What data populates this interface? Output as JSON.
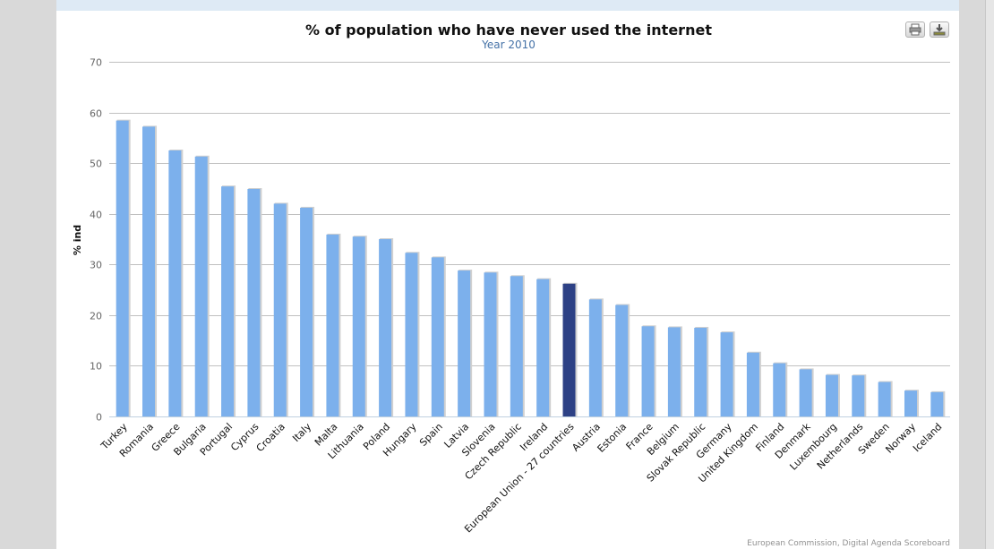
{
  "chart_data": {
    "type": "bar",
    "title": "% of population who have never used the internet",
    "subtitle": "Year 2010",
    "ylabel": "% ind",
    "xlabel": "",
    "ylim": [
      0,
      70
    ],
    "yticks": [
      0,
      10,
      20,
      30,
      40,
      50,
      60,
      70
    ],
    "grid": true,
    "categories": [
      "Turkey",
      "Romania",
      "Greece",
      "Bulgaria",
      "Portugal",
      "Cyprus",
      "Croatia",
      "Italy",
      "Malta",
      "Lithuania",
      "Poland",
      "Hungary",
      "Spain",
      "Latvia",
      "Slovenia",
      "Czech Republic",
      "Ireland",
      "European Union - 27 countries",
      "Austria",
      "Estonia",
      "France",
      "Belgium",
      "Slovak Republic",
      "Germany",
      "United Kingdom",
      "Finland",
      "Denmark",
      "Luxembourg",
      "Netherlands",
      "Sweden",
      "Norway",
      "Iceland"
    ],
    "values": [
      58.4,
      57.2,
      52.5,
      51.3,
      45.4,
      44.9,
      42.0,
      41.2,
      35.9,
      35.5,
      35.0,
      32.3,
      31.4,
      28.8,
      28.4,
      27.7,
      27.1,
      26.2,
      23.1,
      22.0,
      17.8,
      17.6,
      17.5,
      16.6,
      12.6,
      10.5,
      9.3,
      8.2,
      8.1,
      6.8,
      5.1,
      4.8
    ],
    "highlight_category": "European Union - 27 countries",
    "colors": {
      "bar": "#7cb0ec",
      "highlight": "#2d4185",
      "grid": "#c0c0c0"
    }
  },
  "toolbar": {
    "print_icon": "printer-icon",
    "export_icon": "download-icon"
  },
  "credit": "European Commission, Digital Agenda Scoreboard"
}
